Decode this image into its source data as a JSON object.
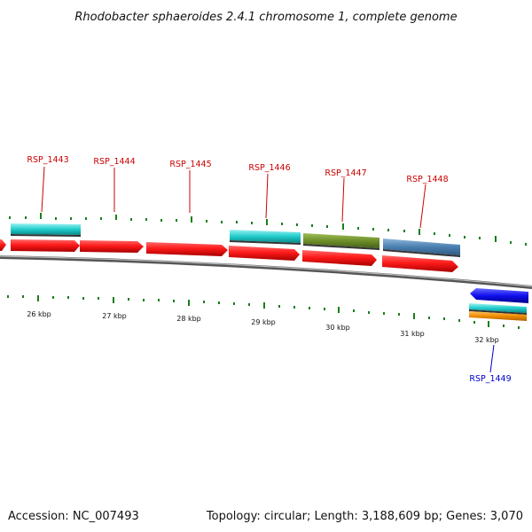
{
  "title": "Rhodobacter sphaeroides 2.4.1 chromosome 1, complete genome",
  "footer": {
    "accession": "Accession: NC_007493",
    "stats": "Topology: circular; Length: 3,188,609 bp; Genes: 3,070"
  },
  "colors": {
    "forward_gene": "#ff1a1a",
    "reverse_gene": "#1010ee",
    "label_forward": "#cc0000",
    "label_reverse": "#0000cc",
    "tick": "#1a7f1a",
    "backbone": "#777777",
    "cyan_feature": "#22cccc",
    "olive_feature": "#6e8f2a",
    "steelblue_feature": "#4a7fb0",
    "orange_feature": "#f08c00"
  },
  "scale_labels": [
    "26 kbp",
    "27 kbp",
    "28 kbp",
    "29 kbp",
    "30 kbp",
    "31 kbp",
    "32 kbp"
  ],
  "gene_labels": {
    "forward": [
      "RSP_1443",
      "RSP_1444",
      "RSP_1445",
      "RSP_1446",
      "RSP_1447",
      "RSP_1448"
    ],
    "reverse": [
      "RSP_1449"
    ]
  }
}
